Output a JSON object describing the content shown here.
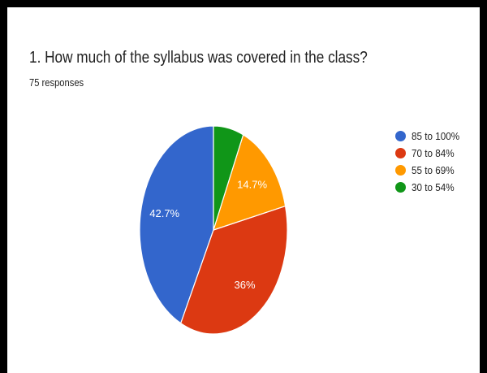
{
  "form": {
    "question_title": "1. How much of the syllabus was covered in the class?",
    "responses_text": "75 responses"
  },
  "chart_data": {
    "type": "pie",
    "title": "1. How much of the syllabus was covered in the class?",
    "total_responses": 75,
    "categories": [
      "85 to 100%",
      "70 to 84%",
      "55 to 69%",
      "30 to 54%"
    ],
    "values": [
      42.7,
      36,
      14.7,
      6.6
    ],
    "slice_labels": [
      "42.7%",
      "36%",
      "14.7%",
      ""
    ],
    "colors": [
      "#3366CC",
      "#DC3912",
      "#FF9900",
      "#109618"
    ],
    "start_angle_deg": 90,
    "direction": "counterclockwise",
    "legend_position": "right"
  }
}
